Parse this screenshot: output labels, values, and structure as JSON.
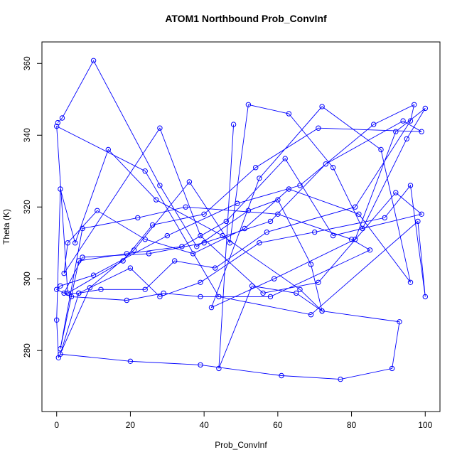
{
  "chart_data": {
    "type": "line",
    "title": "ATOM1 Northbound Prob_ConvInf",
    "xlabel": "Prob_ConvInf",
    "ylabel": "Theta (K)",
    "xlim": [
      -4,
      104
    ],
    "ylim": [
      263,
      366
    ],
    "xticks": [
      0,
      20,
      40,
      60,
      80,
      100
    ],
    "yticks": [
      280,
      300,
      320,
      340,
      360
    ],
    "grid": false,
    "legend": "none",
    "markers": "open-circle",
    "line_color": "#0000ff",
    "series": [
      {
        "x": [
          0.3,
          1.5,
          10,
          28,
          38,
          52,
          60,
          69,
          72,
          66,
          45,
          27,
          14,
          5,
          1,
          0,
          0.5,
          9,
          21,
          36,
          47,
          52,
          63,
          75,
          83,
          95,
          100,
          92,
          81,
          59,
          42,
          55,
          72,
          88,
          96,
          82,
          63,
          51,
          37,
          24,
          11,
          3,
          2,
          28,
          39,
          56,
          71,
          92,
          99,
          75,
          62,
          46,
          34,
          19,
          6,
          1,
          7,
          22,
          35,
          60,
          80,
          85,
          58,
          39,
          29,
          19,
          4,
          0,
          1,
          10,
          30,
          49,
          66,
          86,
          97,
          96,
          81,
          57,
          43,
          32,
          24,
          12,
          6,
          2,
          7,
          25,
          40,
          58,
          73,
          94,
          99,
          71,
          54,
          40,
          26,
          18,
          3,
          0,
          24,
          44,
          69,
          98,
          100,
          96,
          89,
          70,
          55,
          39,
          28,
          20,
          6,
          1,
          20,
          39,
          61,
          77,
          91,
          93,
          72,
          65,
          53,
          44,
          48
        ],
        "y": [
          343.5,
          344.8,
          360.8,
          326,
          309,
          319,
          322,
          304,
          291,
          297,
          312,
          322,
          336,
          310,
          325,
          288.5,
          278,
          297.5,
          308,
          327,
          310,
          348.5,
          346,
          331,
          314,
          339,
          347.5,
          341,
          311,
          300,
          292,
          328,
          348,
          336,
          299,
          318,
          325,
          314,
          307,
          311,
          319,
          310,
          301.5,
          342,
          312,
          296,
          299,
          324,
          318,
          312,
          333.5,
          316,
          309,
          307,
          305,
          280.5,
          314,
          317,
          320,
          318,
          311,
          308,
          295,
          295,
          296,
          294,
          295,
          297,
          298,
          301,
          312,
          321,
          326,
          343,
          348.5,
          344,
          320,
          313,
          303,
          305,
          297,
          297,
          296,
          296,
          306,
          307,
          310,
          316,
          332,
          344,
          341,
          342,
          331,
          318,
          315,
          305,
          296,
          342.5,
          330,
          295,
          290,
          316,
          295,
          326,
          317,
          313,
          310,
          299,
          295,
          303,
          296,
          279,
          277,
          276,
          273,
          272,
          275,
          288,
          291,
          296,
          298,
          275,
          343
        ]
      }
    ]
  }
}
